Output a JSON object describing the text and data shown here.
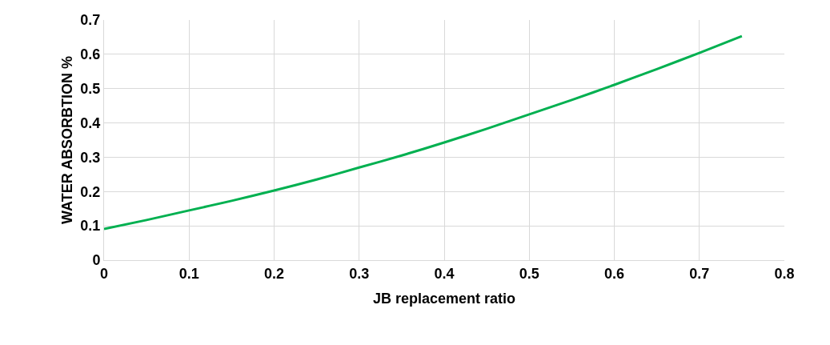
{
  "chart_data": {
    "type": "line",
    "xlabel": "JB replacement ratio",
    "ylabel": "WATER ABSORBTION %",
    "x": [
      0,
      0.05,
      0.1,
      0.15,
      0.2,
      0.25,
      0.3,
      0.35,
      0.4,
      0.45,
      0.5,
      0.55,
      0.6,
      0.65,
      0.7,
      0.75
    ],
    "series": [
      {
        "color": "#00b050",
        "values": [
          0.091,
          0.117,
          0.145,
          0.173,
          0.203,
          0.235,
          0.27,
          0.305,
          0.343,
          0.383,
          0.425,
          0.467,
          0.511,
          0.557,
          0.604,
          0.653
        ]
      }
    ],
    "xlim": [
      0,
      0.8
    ],
    "xticks": [
      0,
      0.1,
      0.2,
      0.3,
      0.4,
      0.5,
      0.6,
      0.7,
      0.8
    ],
    "ylim": [
      0,
      0.7
    ],
    "yticks": [
      0,
      0.1,
      0.2,
      0.3,
      0.4,
      0.5,
      0.6,
      0.7
    ],
    "grid": true,
    "marker": "none",
    "line_style": "solid"
  }
}
